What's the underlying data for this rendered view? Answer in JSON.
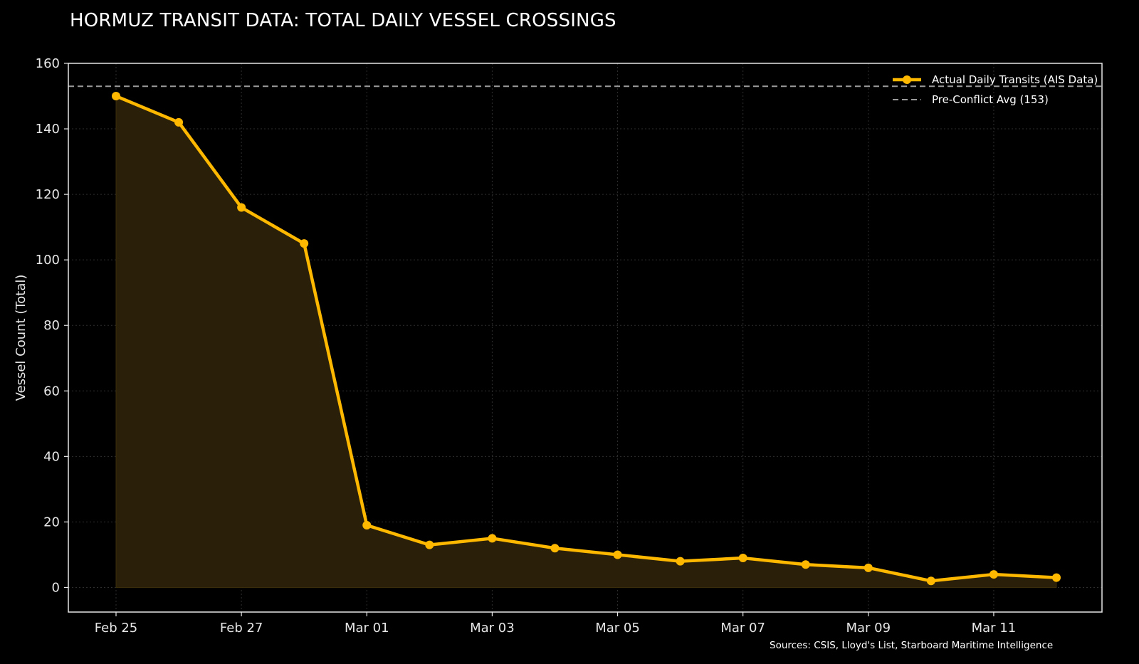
{
  "title": "HORMUZ TRANSIT DATA: TOTAL DAILY VESSEL CROSSINGS",
  "source_note": "Sources: CSIS, Lloyd's List, Starboard Maritime Intelligence",
  "colors": {
    "background": "#000000",
    "series_line": "#FFB800",
    "series_fill": "#2a200a",
    "reference_line": "#9a9a9a",
    "grid": "#2e2e2e",
    "axes": "#e6e6e6"
  },
  "chart_data": {
    "type": "line",
    "title": "HORMUZ TRANSIT DATA: TOTAL DAILY VESSEL CROSSINGS",
    "xlabel": "",
    "ylabel": "Vessel Count (Total)",
    "x": [
      "Feb 25",
      "Feb 26",
      "Feb 27",
      "Feb 28",
      "Mar 01",
      "Mar 02",
      "Mar 03",
      "Mar 04",
      "Mar 05",
      "Mar 06",
      "Mar 07",
      "Mar 08",
      "Mar 09",
      "Mar 10",
      "Mar 11",
      "Mar 12"
    ],
    "x_tick_labels": [
      "Feb 25",
      "Feb 27",
      "Mar 01",
      "Mar 03",
      "Mar 05",
      "Mar 07",
      "Mar 09",
      "Mar 11"
    ],
    "ylim": [
      -7.5,
      160
    ],
    "y_ticks": [
      0,
      20,
      40,
      60,
      80,
      100,
      120,
      140,
      160
    ],
    "series": [
      {
        "name": "Actual Daily Transits (AIS Data)",
        "values": [
          150,
          142,
          116,
          105,
          19,
          13,
          15,
          12,
          10,
          8,
          9,
          7,
          6,
          2,
          4,
          3
        ],
        "style": "line-with-markers-filled-area"
      }
    ],
    "reference_lines": [
      {
        "name": "Pre-Conflict Avg (153)",
        "y": 153,
        "style": "dashed"
      }
    ],
    "grid": true,
    "legend_position": "top-right"
  }
}
